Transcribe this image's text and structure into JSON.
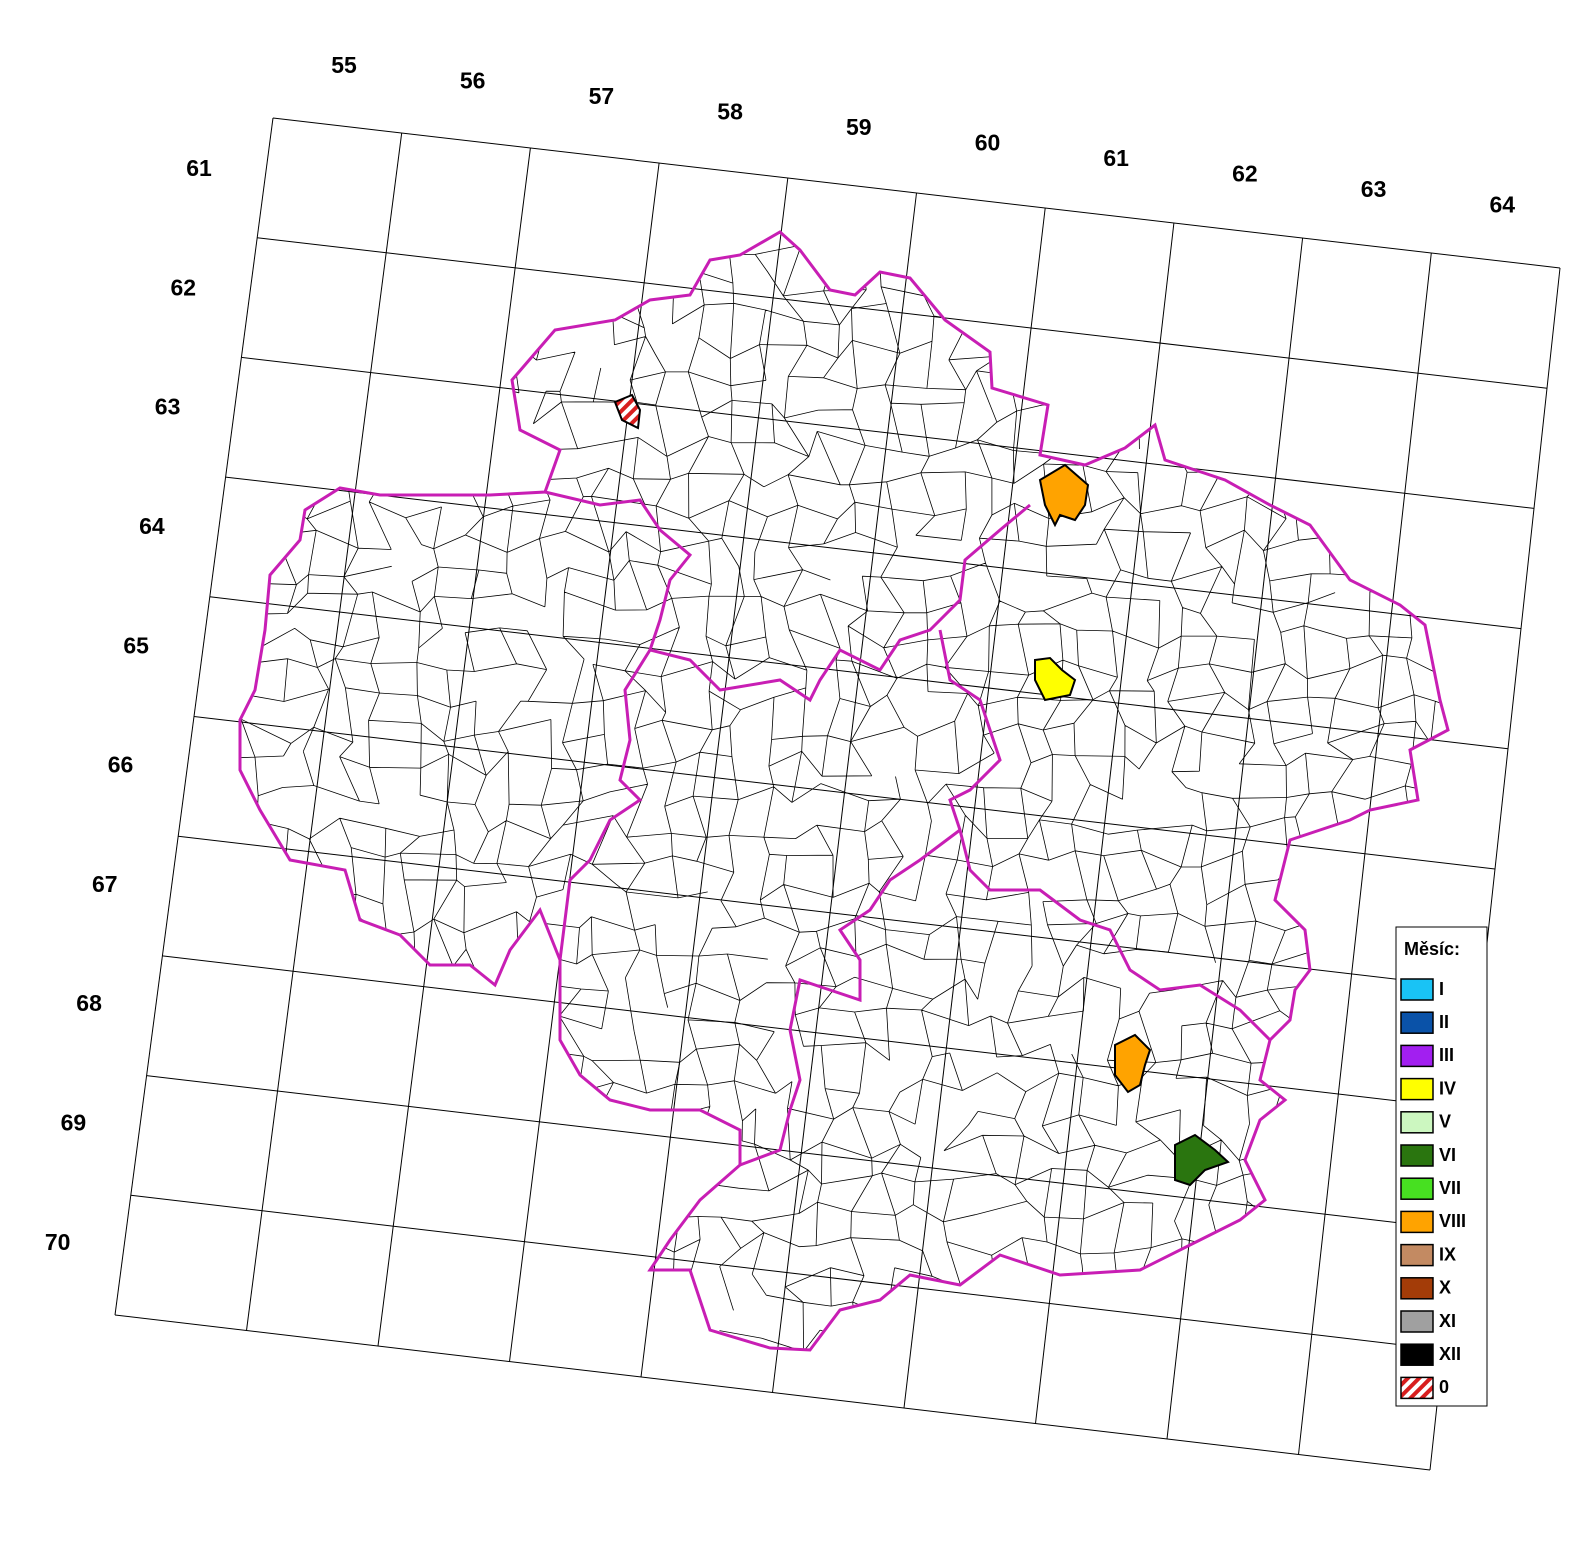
{
  "grid": {
    "columns": [
      55,
      56,
      57,
      58,
      59,
      60,
      61,
      62,
      63,
      64
    ],
    "rows": [
      61,
      62,
      63,
      64,
      65,
      66,
      67,
      68,
      69,
      70
    ]
  },
  "legend": {
    "title": "Měsíc:",
    "items": [
      {
        "label": "I",
        "color": "#19c3f5"
      },
      {
        "label": "II",
        "color": "#0a52a8"
      },
      {
        "label": "III",
        "color": "#a21ff0"
      },
      {
        "label": "IV",
        "color": "#ffff00"
      },
      {
        "label": "V",
        "color": "#ccf7c0"
      },
      {
        "label": "VI",
        "color": "#2a750f"
      },
      {
        "label": "VII",
        "color": "#47e021"
      },
      {
        "label": "VIII",
        "color": "#ffa300"
      },
      {
        "label": "IX",
        "color": "#c38a62"
      },
      {
        "label": "X",
        "color": "#a33c08"
      },
      {
        "label": "XI",
        "color": "#a0a0a0"
      },
      {
        "label": "XII",
        "color": "#000000"
      },
      {
        "label": "0",
        "color": "#d81e1e",
        "hatched": true
      }
    ]
  }
}
